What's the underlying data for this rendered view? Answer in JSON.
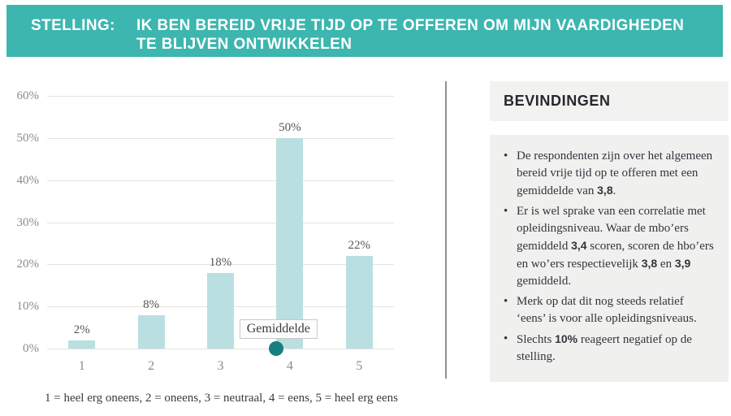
{
  "banner": {
    "label": "STELLING:",
    "title_line1": "IK BEN BEREID VRIJE TIJD OP TE OFFEREN OM MIJN VAARDIGHEDEN",
    "title_line2": "TE BLIJVEN ONTWIKKELEN",
    "bg_color": "#3cb6af"
  },
  "chart_data": {
    "type": "bar",
    "categories": [
      "1",
      "2",
      "3",
      "4",
      "5"
    ],
    "values": [
      2,
      8,
      18,
      50,
      22
    ],
    "value_labels": [
      "2%",
      "8%",
      "18%",
      "50%",
      "22%"
    ],
    "ylim": [
      0,
      60
    ],
    "ytick_step": 10,
    "ytick_labels": [
      "0%",
      "10%",
      "20%",
      "30%",
      "40%",
      "50%",
      "60%"
    ],
    "grid": "horizontal",
    "legend": "none",
    "bar_color": "#b9dfe1",
    "mean": {
      "value": 3.8,
      "label": "Gemiddelde",
      "dot_color": "#197e80"
    },
    "footnote": "1 = heel erg oneens, 2 = oneens, 3 = neutraal, 4 = eens, 5 = heel erg eens"
  },
  "findings": {
    "title": "BEVINDINGEN",
    "bullets": [
      [
        {
          "t": "De respondenten zijn over het algemeen bereid vrije tijd op te offeren met een gemiddelde van "
        },
        {
          "t": "3,8",
          "b": true
        },
        {
          "t": "."
        }
      ],
      [
        {
          "t": "Er is wel sprake van een correlatie met opleidingsniveau. Waar de mbo’ers gemiddeld "
        },
        {
          "t": "3,4",
          "b": true
        },
        {
          "t": " scoren, scoren de hbo’ers en wo’ers respectievelijk "
        },
        {
          "t": "3,8",
          "b": true
        },
        {
          "t": " en "
        },
        {
          "t": "3,9",
          "b": true
        },
        {
          "t": " gemiddeld."
        }
      ],
      [
        {
          "t": "Merk op dat dit nog steeds relatief ‘eens’ is voor alle opleidingsniveaus."
        }
      ],
      [
        {
          "t": "Slechts "
        },
        {
          "t": "10%",
          "b": true
        },
        {
          "t": " reageert negatief op de stelling."
        }
      ]
    ]
  }
}
